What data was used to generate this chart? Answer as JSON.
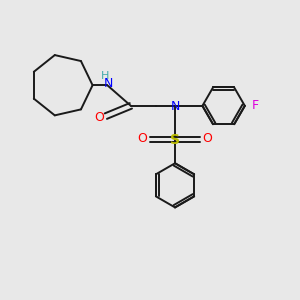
{
  "background_color": "#e8e8e8",
  "bond_color": "#1a1a1a",
  "N_color": "#0000ff",
  "O_color": "#ff0000",
  "S_color": "#bbbb00",
  "F_color": "#dd00dd",
  "H_color": "#44aaaa",
  "figsize": [
    3.0,
    3.0
  ],
  "dpi": 100,
  "xlim": [
    0,
    10
  ],
  "ylim": [
    0,
    10
  ]
}
